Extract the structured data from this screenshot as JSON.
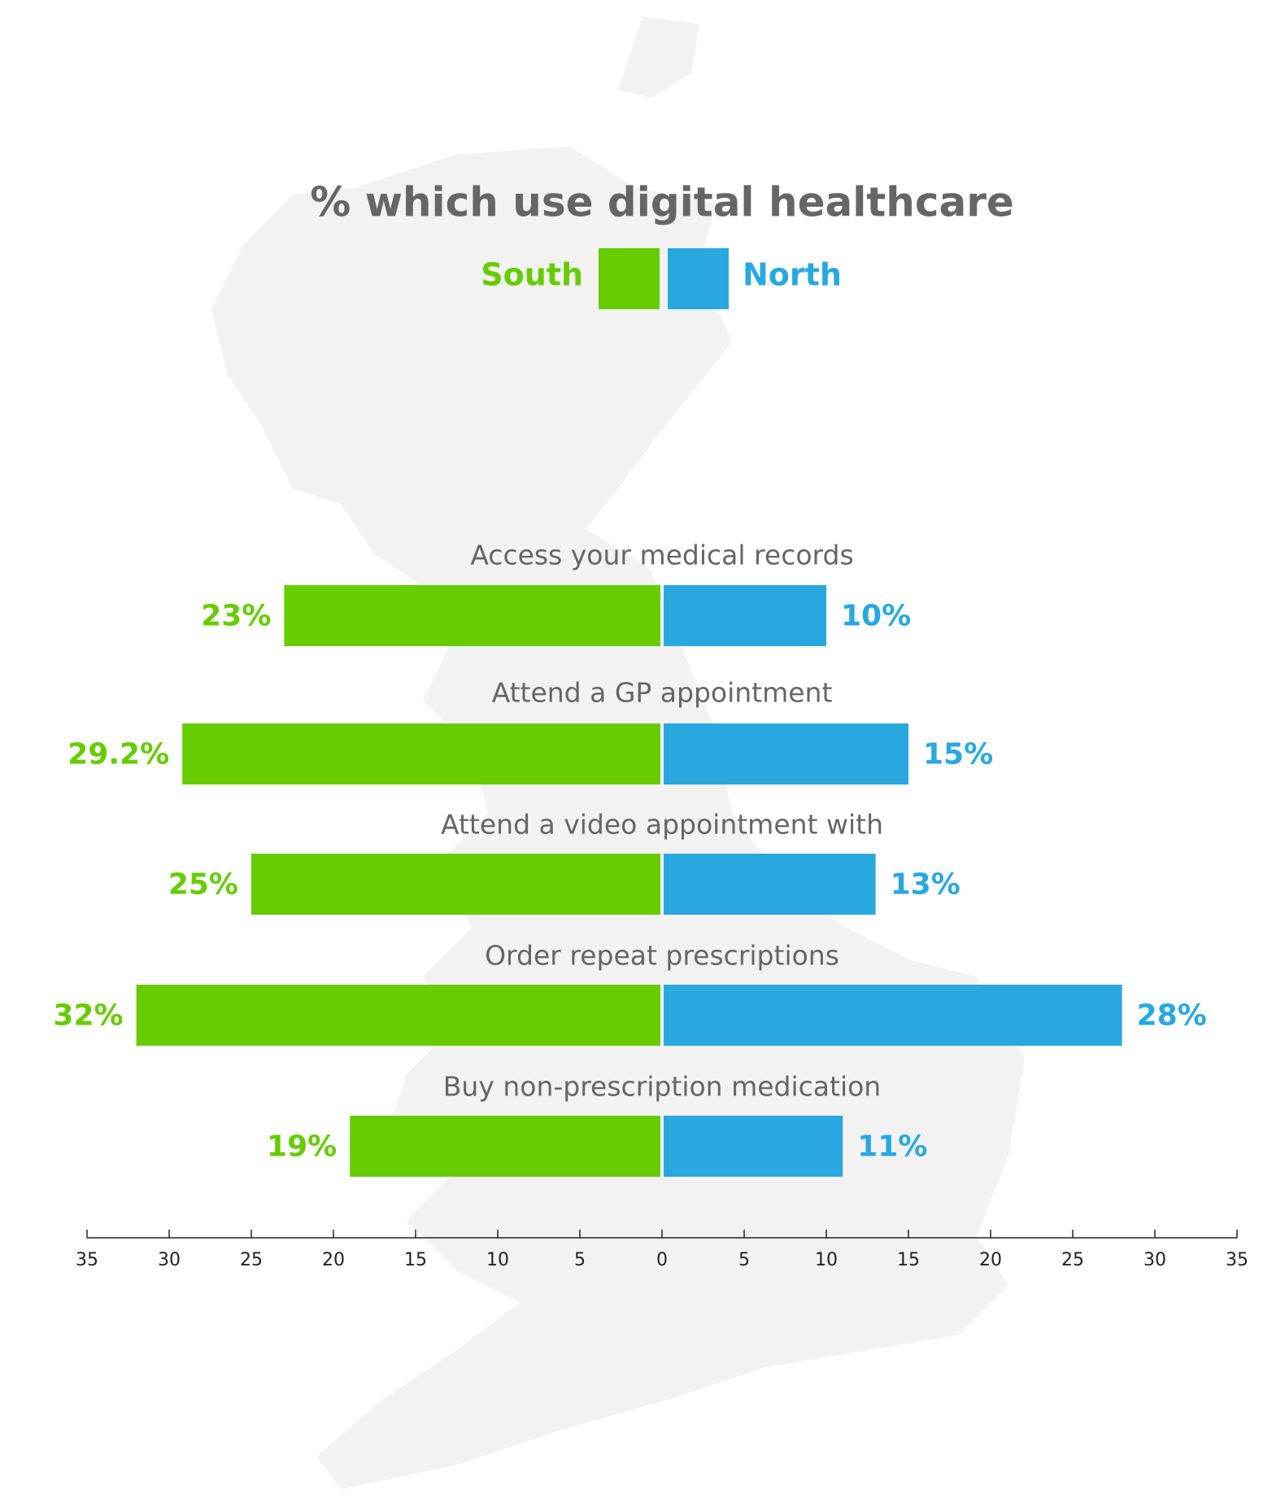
{
  "chart_data": {
    "type": "diverging-bar",
    "title": "% which use digital healthcare",
    "categories": [
      "Access your medical records",
      "Attend a GP appointment",
      "Attend a video appointment with",
      "Order repeat prescriptions",
      "Buy non-prescription medication"
    ],
    "series": [
      {
        "name": "South",
        "color": "#66cc00",
        "side": "left",
        "values": [
          23,
          29.2,
          25,
          32,
          19
        ],
        "value_labels": [
          "23%",
          "29.2%",
          "25%",
          "32%",
          "19%"
        ]
      },
      {
        "name": "North",
        "color": "#29a8e0",
        "side": "right",
        "values": [
          10,
          15,
          13,
          28,
          11
        ],
        "value_labels": [
          "10%",
          "15%",
          "13%",
          "28%",
          "11%"
        ]
      }
    ],
    "xlim": [
      -35,
      35
    ],
    "xticks": [
      {
        "value": -35,
        "label": "35"
      },
      {
        "value": -30,
        "label": "30"
      },
      {
        "value": -25,
        "label": "25"
      },
      {
        "value": -20,
        "label": "20"
      },
      {
        "value": -15,
        "label": "15"
      },
      {
        "value": -10,
        "label": "10"
      },
      {
        "value": -5,
        "label": "5"
      },
      0,
      5,
      10,
      15,
      20,
      25,
      30,
      35
    ],
    "grid": false
  }
}
